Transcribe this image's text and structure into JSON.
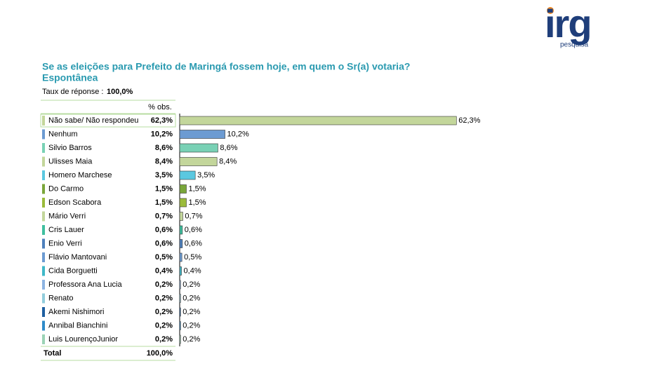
{
  "logo": {
    "text": "irg",
    "subtitle": "pesquisa"
  },
  "response_rate": {
    "label": "Taux de réponse :",
    "value": "100,0%"
  },
  "total": {
    "label": "Total",
    "value": "100,0%"
  },
  "chart_data": {
    "type": "bar",
    "orientation": "horizontal",
    "title": "Se as eleições para Prefeito de Maringá fossem hoje, em quem o Sr(a) votaria?",
    "subtitle": "Espontânea",
    "column_header": "% obs.",
    "categories": [
      "Não sabe/ Não respondeu",
      "Nenhum",
      "Silvio Barros",
      "Ulisses Maia",
      "Homero Marchese",
      "Do Carmo",
      "Edson Scabora",
      "Mário Verri",
      "Cris Lauer",
      "Enio Verri",
      "Flávio Mantovani",
      "Cida Borguetti",
      "Professora Ana Lucia",
      "Renato",
      "Akemi Nishimori",
      "Annibal Bianchini",
      "Luis LourençoJunior"
    ],
    "values": [
      62.3,
      10.2,
      8.6,
      8.4,
      3.5,
      1.5,
      1.5,
      0.7,
      0.6,
      0.6,
      0.5,
      0.4,
      0.2,
      0.2,
      0.2,
      0.2,
      0.2
    ],
    "value_labels": [
      "62,3%",
      "10,2%",
      "8,6%",
      "8,4%",
      "3,5%",
      "1,5%",
      "1,5%",
      "0,7%",
      "0,6%",
      "0,6%",
      "0,5%",
      "0,4%",
      "0,2%",
      "0,2%",
      "0,2%",
      "0,2%",
      "0,2%"
    ],
    "colors": [
      "#c3d69b",
      "#6c9bd2",
      "#79d1b5",
      "#c3d69b",
      "#5bc8e0",
      "#7aa63a",
      "#9bbb3b",
      "#c3d69b",
      "#3fbf9f",
      "#4f81bd",
      "#6c9bd2",
      "#3fb8c8",
      "#8db4e2",
      "#92cddc",
      "#1f5fa0",
      "#2e8bc9",
      "#9bd3b5"
    ],
    "xlim": [
      0,
      70
    ]
  }
}
